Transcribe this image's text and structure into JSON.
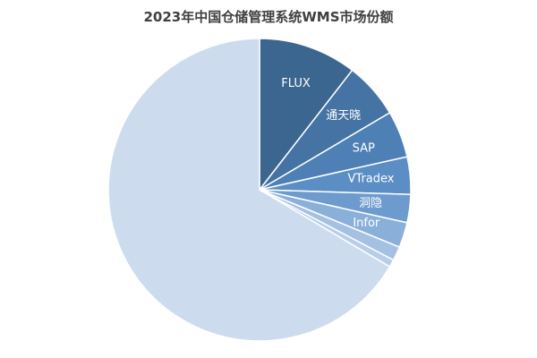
{
  "chart_data": {
    "type": "pie",
    "title": "2023年中国仓储管理系统WMS市场份额",
    "slices": [
      {
        "label": "FLUX",
        "value": 10.5,
        "color": "#3b6690"
      },
      {
        "label": "通天晓",
        "value": 6.0,
        "color": "#4573a3"
      },
      {
        "label": "SAP",
        "value": 5.0,
        "color": "#4e80b5"
      },
      {
        "label": "VTradex",
        "value": 4.0,
        "color": "#5b8ec4"
      },
      {
        "label": "洞隐",
        "value": 3.0,
        "color": "#6d9bce"
      },
      {
        "label": "Infor",
        "value": 2.7,
        "color": "#8ab0da"
      },
      {
        "label": "",
        "value": 1.5,
        "color": "#a4c1e2"
      },
      {
        "label": "",
        "value": 0.8,
        "color": "#b7cde8"
      },
      {
        "label": "",
        "value": 66.5,
        "color": "#ccdcee"
      }
    ]
  }
}
